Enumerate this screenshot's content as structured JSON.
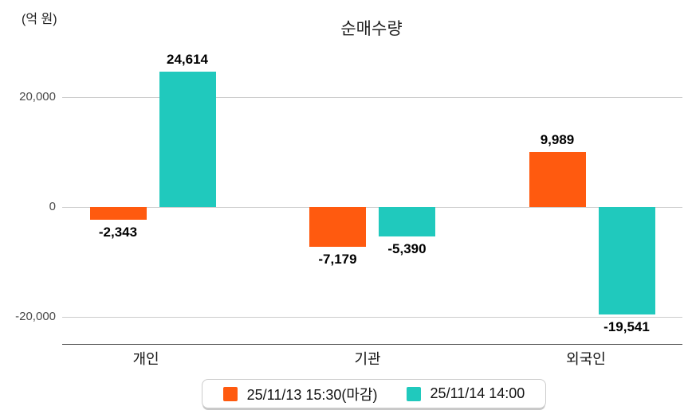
{
  "chart_data": {
    "type": "bar",
    "title": "순매수량",
    "unit_label": "(억 원)",
    "categories": [
      "개인",
      "기관",
      "외국인"
    ],
    "series": [
      {
        "name": "25/11/13 15:30(마감)",
        "color": "#FF5A0F",
        "values": [
          -2343,
          -7179,
          9989
        ],
        "values_display": [
          "-2,343",
          "-7,179",
          "9,989"
        ]
      },
      {
        "name": "25/11/14 14:00",
        "color": "#20C9BD",
        "values": [
          24614,
          -5390,
          -19541
        ],
        "values_display": [
          "24,614",
          "-5,390",
          "-19,541"
        ]
      }
    ],
    "y_axis": {
      "ticks": [
        {
          "value": 20000,
          "label": "20,000"
        },
        {
          "value": 0,
          "label": "0"
        },
        {
          "value": -20000,
          "label": "-20,000"
        }
      ],
      "range": [
        -24000,
        28000
      ]
    },
    "grid": true,
    "legend_position": "bottom"
  }
}
